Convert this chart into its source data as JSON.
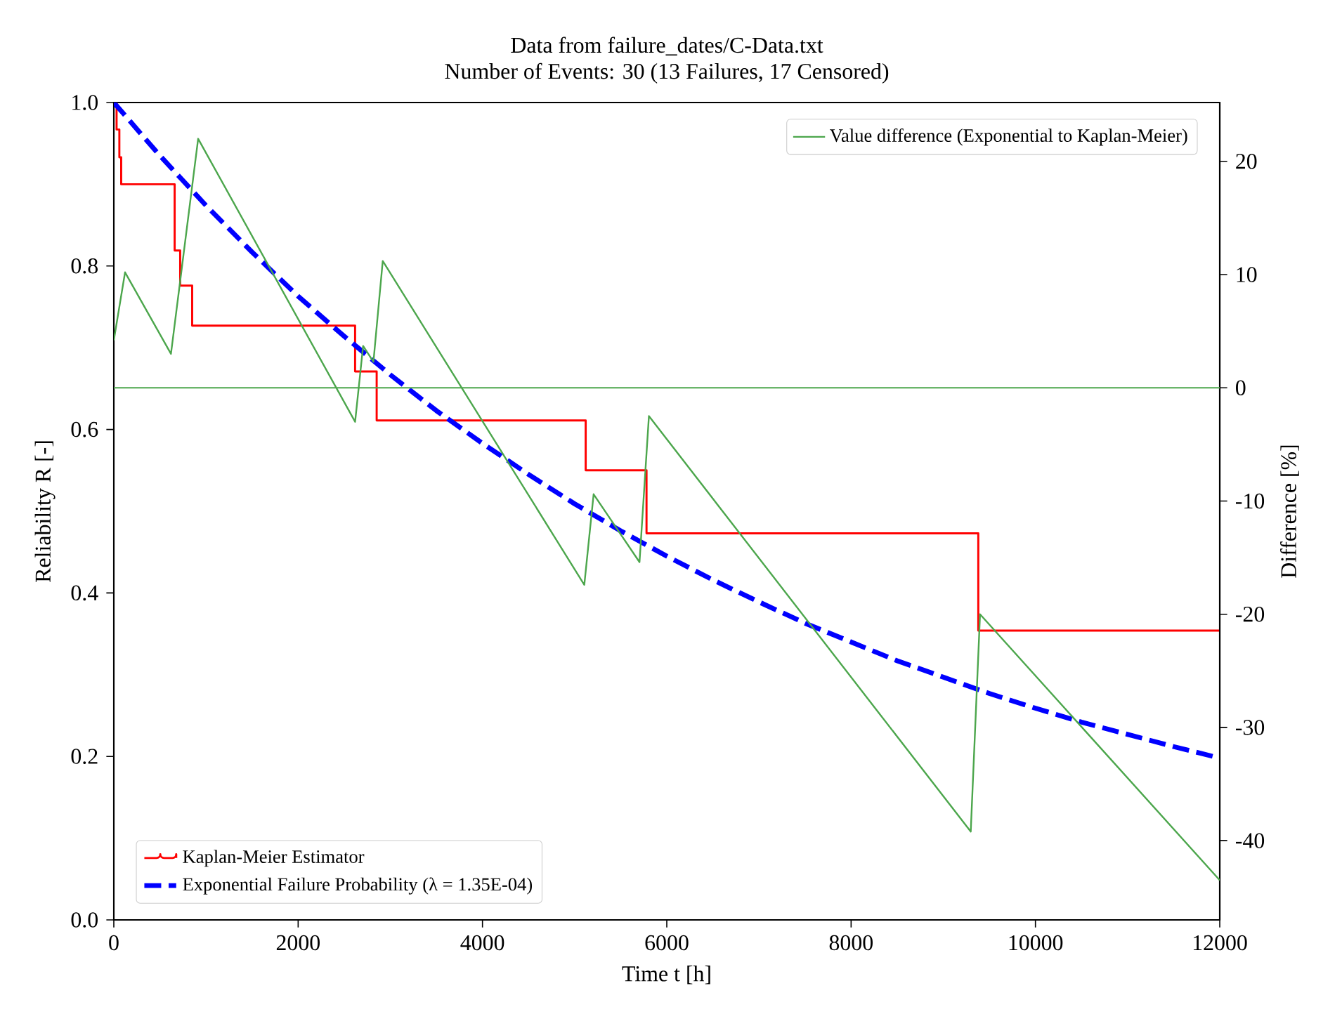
{
  "chart_data": {
    "type": "line",
    "title": "Data from failure_dates/C-Data.txt",
    "subtitle": "Number of Events: 30 (13 Failures, 17 Censored)",
    "xlabel": "Time t [h]",
    "ylabel": "Reliability R [-]",
    "y2label": "Difference [%]",
    "xlim": [
      0,
      12000
    ],
    "xticks": [
      0,
      2000,
      4000,
      6000,
      8000,
      10000,
      12000
    ],
    "ylim": [
      0,
      1
    ],
    "yticks": [
      {
        "value": 0,
        "label": "0.0"
      },
      0.2,
      0.4,
      0.6,
      0.8,
      {
        "value": 1,
        "label": "1.0"
      }
    ],
    "y2lim": [
      -47,
      25.2
    ],
    "y2ticks": [
      -40,
      -30,
      -20,
      -10,
      0,
      10,
      20
    ],
    "legend": "bottom left",
    "grid": false,
    "ref_lines": [
      {
        "axis": "y2",
        "value": 0,
        "color": "#4ca64c"
      }
    ],
    "series": [
      {
        "name": "Kaplan-Meier Estimator",
        "type": "step",
        "color": "#ff0000",
        "line_style": "solid",
        "x": [
          0,
          30,
          60,
          80,
          660,
          720,
          850,
          2618,
          2852,
          5120,
          5780,
          9380,
          12000
        ],
        "values": [
          1.0,
          0.967,
          0.933,
          0.9,
          0.819,
          0.776,
          0.727,
          0.671,
          0.611,
          0.55,
          0.473,
          0.354,
          0.354
        ]
      },
      {
        "name": "Exponential Failure Probability (λ = 1.35E-04)",
        "type": "line",
        "color": "#0000ff",
        "line_style": "dashed",
        "x": [
          0,
          500,
          1000,
          1500,
          2000,
          2500,
          3000,
          3500,
          4000,
          4500,
          5000,
          5500,
          6000,
          6500,
          7000,
          7500,
          8000,
          8500,
          9000,
          9500,
          10000,
          10500,
          11000,
          11500,
          12000
        ],
        "values": [
          1.0,
          0.935,
          0.874,
          0.817,
          0.763,
          0.714,
          0.667,
          0.623,
          0.583,
          0.545,
          0.509,
          0.476,
          0.445,
          0.416,
          0.389,
          0.363,
          0.34,
          0.317,
          0.297,
          0.277,
          0.259,
          0.242,
          0.227,
          0.212,
          0.198
        ]
      },
      {
        "name": "Value difference (Exponential to Kaplan-Meier)",
        "type": "line",
        "axis": "y2",
        "color": "#4ca64c",
        "line_style": "solid",
        "x": [
          0,
          122,
          620,
          915,
          2618,
          2705,
          2817,
          2918,
          5105,
          5206,
          5704,
          5806,
          9298,
          9399,
          12000
        ],
        "values": [
          4.2,
          10.2,
          3.0,
          22.0,
          -3.0,
          3.7,
          2.3,
          11.2,
          -17.4,
          -9.4,
          -15.4,
          -2.5,
          -39.2,
          -20.0,
          -43.5
        ]
      }
    ]
  }
}
